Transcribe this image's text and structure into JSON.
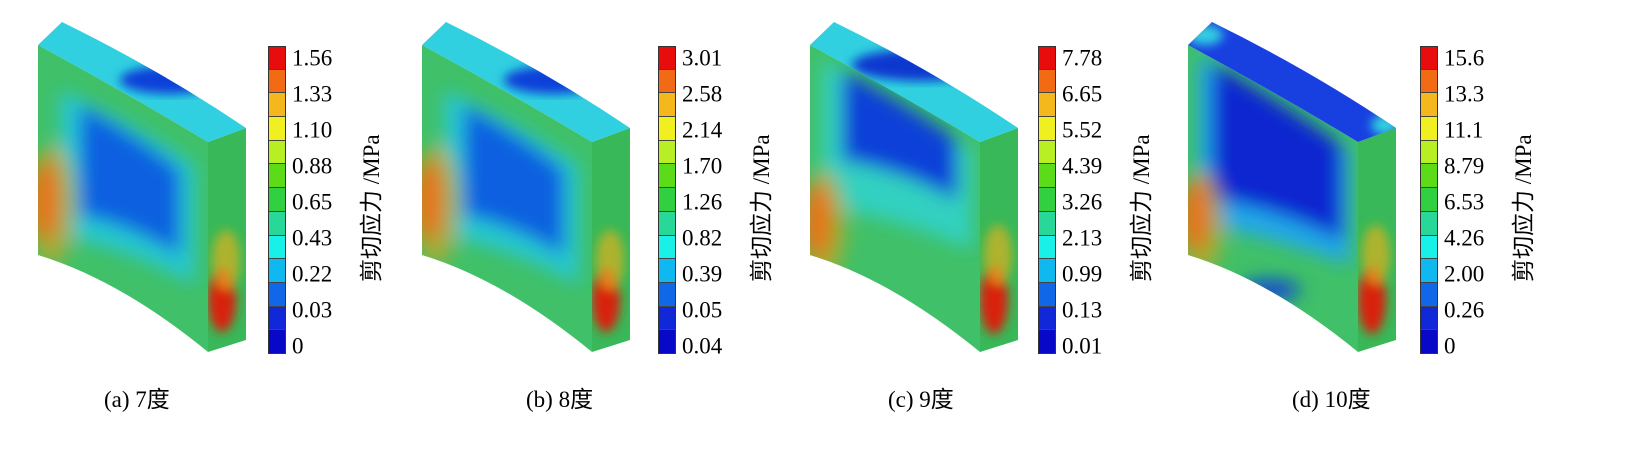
{
  "colorbar_label": "剪切应力 /MPa",
  "levels": [
    "#e80c0c",
    "#f26a14",
    "#f5b81c",
    "#f0f020",
    "#b8ee24",
    "#5cdc18",
    "#30d040",
    "#28d898",
    "#18f0e8",
    "#10b8f0",
    "#1068e8",
    "#1028d8",
    "#0808c8"
  ],
  "panels": [
    {
      "caption": "(a)  7度",
      "ticks": [
        "1.56",
        "1.33",
        "1.10",
        "0.88",
        "0.65",
        "0.43",
        "0.22",
        "0.03",
        "0"
      ]
    },
    {
      "caption": "(b)  8度",
      "ticks": [
        "3.01",
        "2.58",
        "2.14",
        "1.70",
        "1.26",
        "0.82",
        "0.39",
        "0.05",
        "0.04"
      ]
    },
    {
      "caption": "(c) 9度",
      "ticks": [
        "7.78",
        "6.65",
        "5.52",
        "4.39",
        "3.26",
        "2.13",
        "0.99",
        "0.13",
        "0.01"
      ]
    },
    {
      "caption": "(d) 10度",
      "ticks": [
        "15.6",
        "13.3",
        "11.1",
        "8.79",
        "6.53",
        "4.26",
        "2.00",
        "0.26",
        "0"
      ]
    }
  ]
}
